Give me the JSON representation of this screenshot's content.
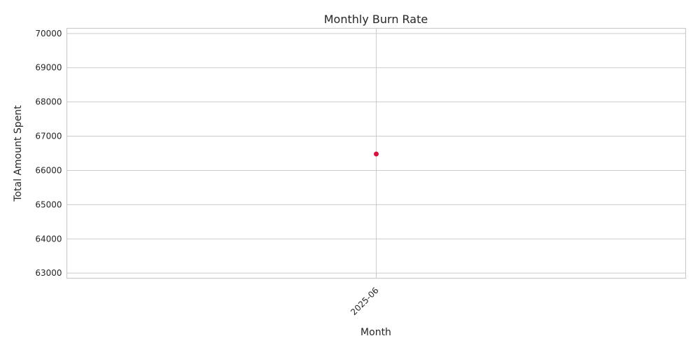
{
  "chart_data": {
    "type": "line",
    "title": "Monthly Burn Rate",
    "xlabel": "Month",
    "ylabel": "Total Amount Spent",
    "categories": [
      "2025-06"
    ],
    "series": [
      {
        "values": [
          66480
        ],
        "color": "#d6143c"
      }
    ],
    "ylim": [
      62850,
      70150
    ],
    "yticks": [
      63000,
      64000,
      65000,
      66000,
      67000,
      68000,
      69000,
      70000
    ],
    "grid": true,
    "legend": false,
    "xtick_rotation": -45
  }
}
